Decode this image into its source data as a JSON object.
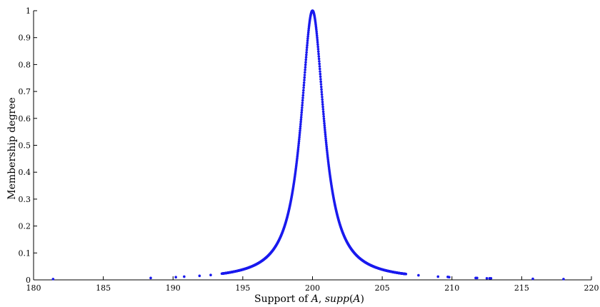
{
  "chart_data": {
    "type": "scatter",
    "title": "",
    "xlabel_parts": [
      {
        "text": "Support of ",
        "italic": false
      },
      {
        "text": "A",
        "italic": true
      },
      {
        "text": ", ",
        "italic": false
      },
      {
        "text": "supp",
        "italic": true
      },
      {
        "text": "(",
        "italic": false
      },
      {
        "text": "A",
        "italic": true
      },
      {
        "text": ")",
        "italic": false
      }
    ],
    "ylabel": "Membership degree",
    "xlim": [
      180,
      220
    ],
    "ylim": [
      0,
      1
    ],
    "xticks": [
      180,
      185,
      190,
      195,
      200,
      205,
      210,
      215,
      220
    ],
    "yticks": [
      0,
      0.1,
      0.2,
      0.3,
      0.4,
      0.5,
      0.6,
      0.7,
      0.8,
      0.9,
      1
    ],
    "ytick_labels": [
      "0",
      "0.1",
      "0.2",
      "0.3",
      "0.4",
      "0.5",
      "0.6",
      "0.7",
      "0.8",
      "0.9",
      "1"
    ],
    "grid": false,
    "color": "#1a1aee",
    "curve": {
      "description_of_shape": "Cauchy membership function",
      "center": 200,
      "half_width": 1
    },
    "dense_x_range": [
      193.5,
      206.7
    ],
    "series": [
      {
        "name": "",
        "points": [
          {
            "x": 181.4,
            "y": 0.003
          },
          {
            "x": 188.4,
            "y": 0.007
          },
          {
            "x": 190.2,
            "y": 0.01
          },
          {
            "x": 190.8,
            "y": 0.012
          },
          {
            "x": 191.9,
            "y": 0.015
          },
          {
            "x": 192.7,
            "y": 0.018
          },
          {
            "x": 207.6,
            "y": 0.017
          },
          {
            "x": 209.0,
            "y": 0.012
          },
          {
            "x": 209.7,
            "y": 0.011
          },
          {
            "x": 209.8,
            "y": 0.01
          },
          {
            "x": 211.7,
            "y": 0.007
          },
          {
            "x": 211.8,
            "y": 0.007
          },
          {
            "x": 212.5,
            "y": 0.006
          },
          {
            "x": 212.7,
            "y": 0.006
          },
          {
            "x": 212.8,
            "y": 0.006
          },
          {
            "x": 215.8,
            "y": 0.004
          },
          {
            "x": 218.0,
            "y": 0.003
          }
        ]
      }
    ]
  }
}
